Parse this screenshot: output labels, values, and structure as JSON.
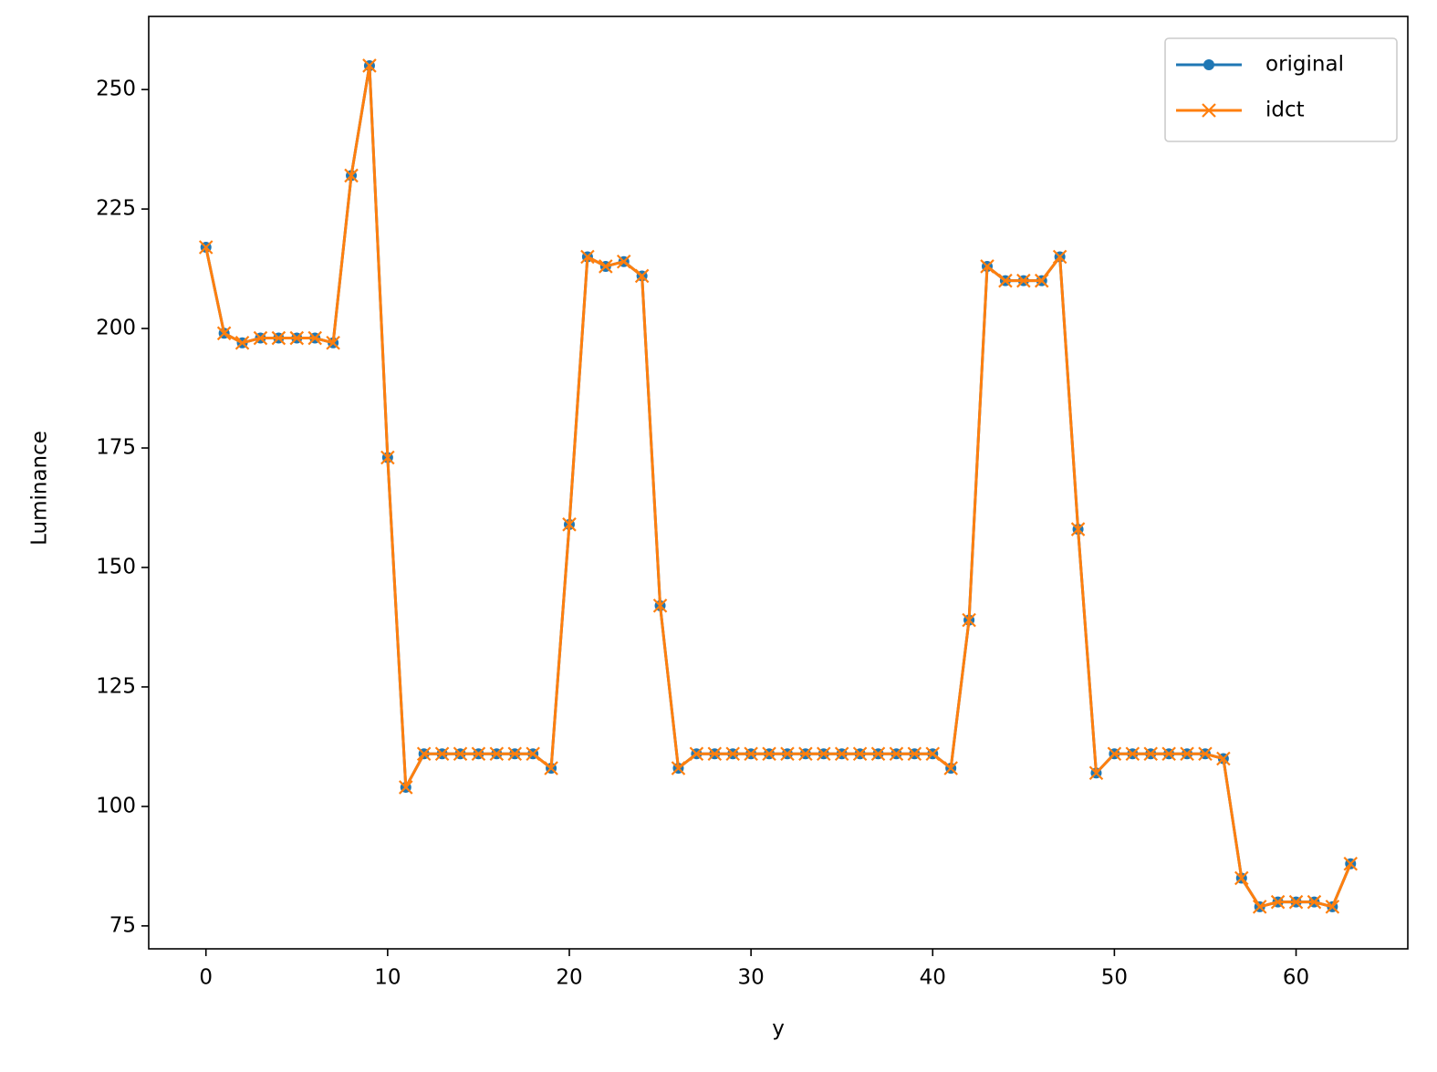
{
  "chart_data": {
    "type": "line",
    "xlabel": "y",
    "ylabel": "Luminance",
    "x": [
      0,
      1,
      2,
      3,
      4,
      5,
      6,
      7,
      8,
      9,
      10,
      11,
      12,
      13,
      14,
      15,
      16,
      17,
      18,
      19,
      20,
      21,
      22,
      23,
      24,
      25,
      26,
      27,
      28,
      29,
      30,
      31,
      32,
      33,
      34,
      35,
      36,
      37,
      38,
      39,
      40,
      41,
      42,
      43,
      44,
      45,
      46,
      47,
      48,
      49,
      50,
      51,
      52,
      53,
      54,
      55,
      56,
      57,
      58,
      59,
      60,
      61,
      62,
      63
    ],
    "series": [
      {
        "name": "original",
        "color": "#1f77b4",
        "marker": "o",
        "values": [
          217,
          199,
          197,
          198,
          198,
          198,
          198,
          197,
          232,
          255,
          173,
          104,
          111,
          111,
          111,
          111,
          111,
          111,
          111,
          108,
          159,
          215,
          213,
          214,
          211,
          142,
          108,
          111,
          111,
          111,
          111,
          111,
          111,
          111,
          111,
          111,
          111,
          111,
          111,
          111,
          111,
          108,
          139,
          213,
          210,
          210,
          210,
          215,
          158,
          107,
          111,
          111,
          111,
          111,
          111,
          111,
          110,
          85,
          79,
          80,
          80,
          80,
          79,
          88
        ]
      },
      {
        "name": "idct",
        "color": "#ff7f0e",
        "marker": "x",
        "values": [
          217,
          199,
          197,
          198,
          198,
          198,
          198,
          197,
          232,
          255,
          173,
          104,
          111,
          111,
          111,
          111,
          111,
          111,
          111,
          108,
          159,
          215,
          213,
          214,
          211,
          142,
          108,
          111,
          111,
          111,
          111,
          111,
          111,
          111,
          111,
          111,
          111,
          111,
          111,
          111,
          111,
          108,
          139,
          213,
          210,
          210,
          210,
          215,
          158,
          107,
          111,
          111,
          111,
          111,
          111,
          111,
          110,
          85,
          79,
          80,
          80,
          80,
          79,
          88
        ]
      }
    ],
    "xlim": [
      -3.15,
      66.15
    ],
    "xticks": [
      0,
      10,
      20,
      30,
      40,
      50,
      60
    ],
    "ylim": [
      70.2,
      265.3
    ],
    "yticks": [
      75,
      100,
      125,
      150,
      175,
      200,
      225,
      250
    ],
    "grid": false,
    "legend": "upper right"
  }
}
